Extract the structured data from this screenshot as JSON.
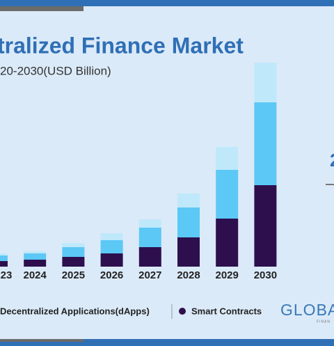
{
  "chart_data": {
    "type": "stacked_bar",
    "title": "tralized Finance Market",
    "subtitle": "20-2030(USD Billion)",
    "categories": [
      "23",
      "2024",
      "2025",
      "2026",
      "2027",
      "2028",
      "2029",
      "2030"
    ],
    "series": [
      {
        "name": "Smart Contracts",
        "color": "#2d0f4e",
        "values": [
          8,
          10,
          14,
          19,
          28,
          42,
          69,
          117
        ]
      },
      {
        "name": "Decentralized Applications(dApps)",
        "color": "#5cc8f6",
        "values": [
          8,
          9,
          14,
          19,
          28,
          43,
          70,
          119
        ]
      },
      {
        "name": null,
        "color": "#bfe8fb",
        "values": [
          3,
          3,
          6,
          10,
          12,
          20,
          33,
          57
        ]
      }
    ],
    "logo": "GLOBA",
    "logo_sub": "FINAN",
    "side_text": "2"
  }
}
